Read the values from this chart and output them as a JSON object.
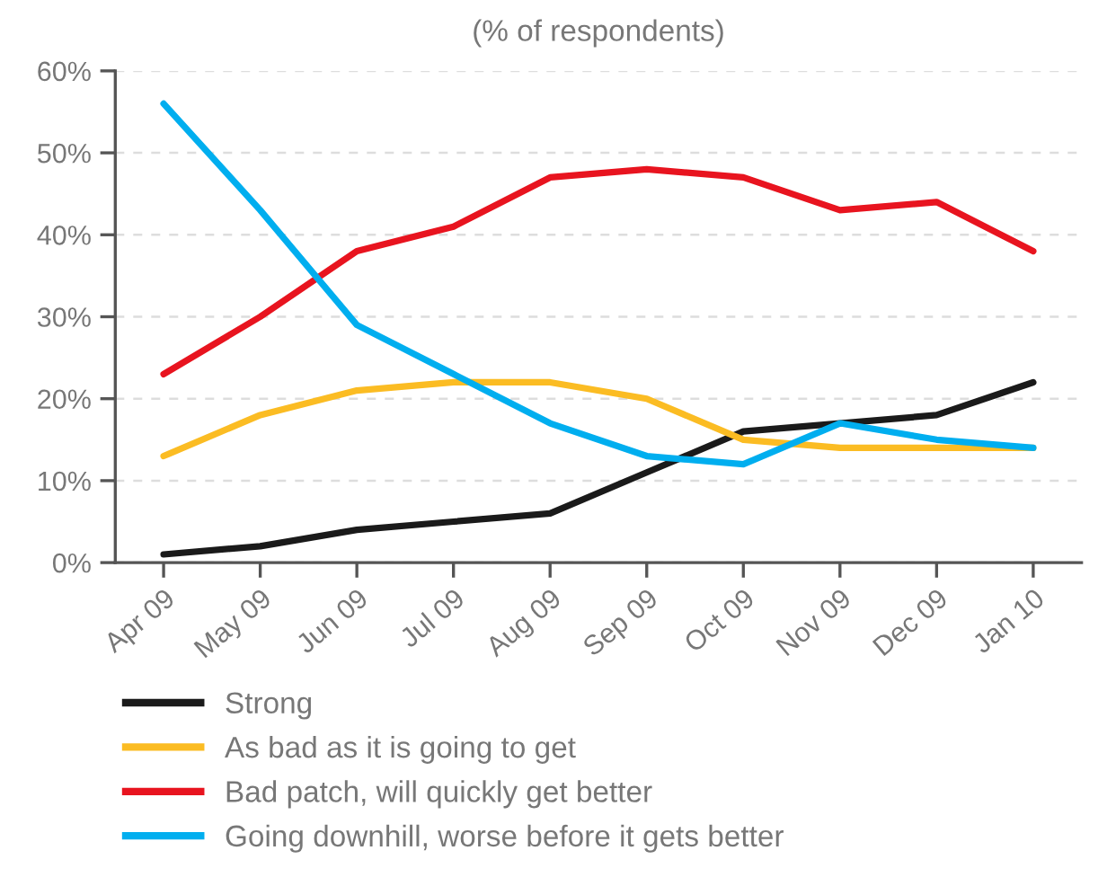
{
  "chart_data": {
    "type": "line",
    "title": "(% of respondents)",
    "categories": [
      "Apr 09",
      "May 09",
      "Jun 09",
      "Jul 09",
      "Aug 09",
      "Sep 09",
      "Oct 09",
      "Nov 09",
      "Dec 09",
      "Jan 10"
    ],
    "series": [
      {
        "name": "Strong",
        "color": "#1a1a1a",
        "values": [
          1,
          2,
          4,
          5,
          6,
          11,
          16,
          17,
          18,
          22
        ]
      },
      {
        "name": "As bad as it is going to get",
        "color": "#fbbc23",
        "values": [
          13,
          18,
          21,
          22,
          22,
          20,
          15,
          14,
          14,
          14
        ]
      },
      {
        "name": "Bad patch, will quickly get better",
        "color": "#e8141f",
        "values": [
          23,
          30,
          38,
          41,
          47,
          48,
          47,
          43,
          44,
          38
        ]
      },
      {
        "name": "Going downhill, worse before it gets better",
        "color": "#00aeef",
        "values": [
          56,
          43,
          29,
          23,
          17,
          13,
          12,
          17,
          15,
          14
        ]
      }
    ],
    "ylim": [
      0,
      60
    ],
    "yticks": [
      {
        "value": 0,
        "label": "0%"
      },
      {
        "value": 10,
        "label": "10%"
      },
      {
        "value": 20,
        "label": "20%"
      },
      {
        "value": 30,
        "label": "30%"
      },
      {
        "value": 40,
        "label": "40%"
      },
      {
        "value": 50,
        "label": "50%"
      },
      {
        "value": 60,
        "label": "60%"
      }
    ],
    "grid": "y",
    "legend": "bottom",
    "marker": "none",
    "line_style": "solid"
  }
}
